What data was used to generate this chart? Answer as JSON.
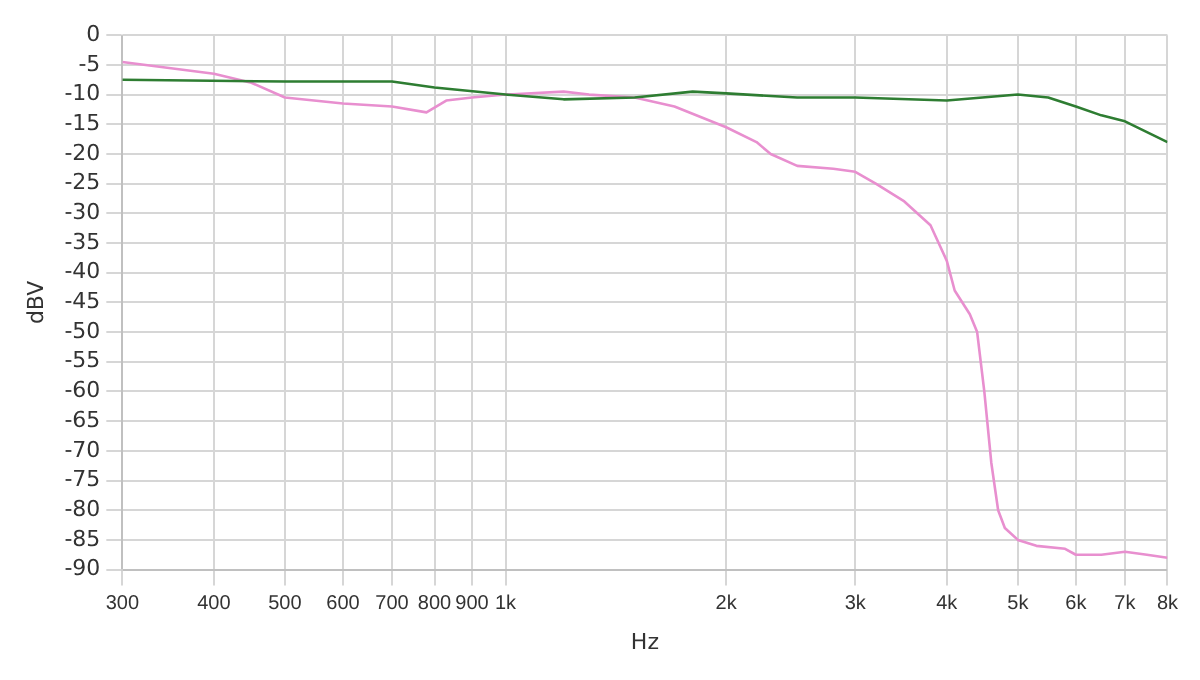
{
  "chart_data": {
    "type": "line",
    "xlabel": "Hz",
    "ylabel": "dBV",
    "log": "x",
    "grid": true,
    "legend": false,
    "marker": "none",
    "line_style": "solid",
    "xlim": [
      300,
      8000
    ],
    "xticks": [
      300,
      400,
      500,
      600,
      700,
      800,
      900,
      {
        "value": 1000,
        "label": "1k"
      },
      {
        "value": 2000,
        "label": "2k"
      },
      {
        "value": 3000,
        "label": "3k"
      },
      {
        "value": 4000,
        "label": "4k"
      },
      {
        "value": 5000,
        "label": "5k"
      },
      {
        "value": 6000,
        "label": "6k"
      },
      {
        "value": 7000,
        "label": "7k"
      },
      {
        "value": 8000,
        "label": "8k"
      }
    ],
    "ylim": [
      -90,
      0
    ],
    "yticks": [
      0,
      -5,
      -10,
      -15,
      -20,
      -25,
      -30,
      -35,
      -40,
      -45,
      -50,
      -55,
      -60,
      -65,
      -70,
      -75,
      -80,
      -85,
      -90
    ],
    "series": [
      {
        "color": "#2e7d32",
        "x": [
          300,
          500,
          700,
          800,
          1000,
          1200,
          1500,
          1800,
          2000,
          2500,
          3000,
          4000,
          5000,
          5500,
          6000,
          6500,
          7000,
          8000
        ],
        "values": [
          -7.5,
          -7.8,
          -7.8,
          -8.8,
          -10,
          -10.8,
          -10.5,
          -9.5,
          -9.8,
          -10.5,
          -10.5,
          -11,
          -10,
          -10.5,
          -12,
          -13.5,
          -14.5,
          -18
        ]
      },
      {
        "color": "#e88fcf",
        "x": [
          300,
          400,
          450,
          500,
          600,
          700,
          780,
          830,
          900,
          1000,
          1200,
          1300,
          1500,
          1700,
          2000,
          2200,
          2300,
          2500,
          2800,
          3000,
          3200,
          3500,
          3800,
          4000,
          4100,
          4300,
          4400,
          4500,
          4600,
          4700,
          4800,
          5000,
          5300,
          5800,
          6000,
          6500,
          7000,
          7500,
          8000
        ],
        "values": [
          -4.5,
          -6.5,
          -8,
          -10.5,
          -11.5,
          -12,
          -13,
          -11,
          -10.5,
          -10,
          -9.5,
          -10,
          -10.5,
          -12,
          -15.5,
          -18,
          -20,
          -22,
          -22.5,
          -23,
          -25,
          -28,
          -32,
          -38,
          -43,
          -47,
          -50,
          -60,
          -72,
          -80,
          -83,
          -85,
          -86,
          -86.5,
          -87.5,
          -87.5,
          -87,
          -87.5,
          -88
        ]
      }
    ]
  }
}
